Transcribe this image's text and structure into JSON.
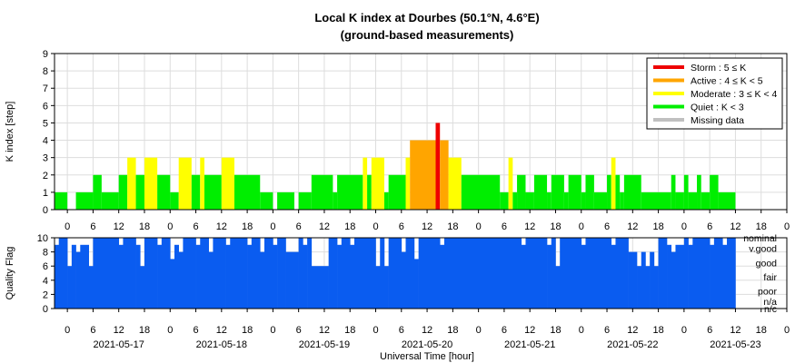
{
  "chart_data": [
    {
      "type": "bar",
      "title": "Local K index at Dourbes (50.1°N, 4.6°E)",
      "subtitle": "(ground-based measurements)",
      "ylabel": "K index [step]",
      "ylim": [
        0,
        9
      ],
      "yticks": [
        "0",
        "1",
        "2",
        "3",
        "4",
        "5",
        "6",
        "7",
        "8",
        "9"
      ],
      "x_start": "2021-05-16 21:00 UT",
      "x_end": "2021-05-24 00:00 UT",
      "bar_width_hours": 1,
      "x_tick_labels": [
        "0",
        "6",
        "12",
        "18",
        "0",
        "6",
        "12",
        "18",
        "0",
        "6",
        "12",
        "18",
        "0",
        "6",
        "12",
        "18",
        "0",
        "6",
        "12",
        "18",
        "0",
        "6",
        "12",
        "18",
        "0",
        "6",
        "12",
        "18",
        "0"
      ],
      "grid": true,
      "legend_placement": "top-right",
      "legend": [
        {
          "label": "Storm : 5 ≤ K",
          "color": "#ee0000"
        },
        {
          "label": "Active : 4 ≤ K < 5",
          "color": "#ffa500"
        },
        {
          "label": "Moderate : 3 ≤ K < 4",
          "color": "#ffff00"
        },
        {
          "label": "Quiet : K < 3",
          "color": "#00ee00"
        },
        {
          "label": "Missing data",
          "color": "#c0c0c0"
        }
      ],
      "bars": [
        {
          "start": "2021-05-16 21:00",
          "end": "2021-05-17 00:00",
          "value": 1
        },
        {
          "start": "2021-05-17 02:00",
          "end": "2021-05-17 06:00",
          "value": 1
        },
        {
          "start": "2021-05-17 06:00",
          "end": "2021-05-17 08:00",
          "value": 2
        },
        {
          "start": "2021-05-17 08:00",
          "end": "2021-05-17 12:00",
          "value": 1
        },
        {
          "start": "2021-05-17 12:00",
          "end": "2021-05-17 14:00",
          "value": 2
        },
        {
          "start": "2021-05-17 14:00",
          "end": "2021-05-17 16:00",
          "value": 3
        },
        {
          "start": "2021-05-17 16:00",
          "end": "2021-05-17 18:00",
          "value": 2
        },
        {
          "start": "2021-05-17 18:00",
          "end": "2021-05-17 21:00",
          "value": 3
        },
        {
          "start": "2021-05-17 21:00",
          "end": "2021-05-18 00:00",
          "value": 2
        },
        {
          "start": "2021-05-18 00:00",
          "end": "2021-05-18 02:00",
          "value": 1
        },
        {
          "start": "2021-05-18 02:00",
          "end": "2021-05-18 05:00",
          "value": 3
        },
        {
          "start": "2021-05-18 05:00",
          "end": "2021-05-18 07:00",
          "value": 2
        },
        {
          "start": "2021-05-18 07:00",
          "end": "2021-05-18 08:00",
          "value": 3
        },
        {
          "start": "2021-05-18 08:00",
          "end": "2021-05-18 12:00",
          "value": 2
        },
        {
          "start": "2021-05-18 12:00",
          "end": "2021-05-18 15:00",
          "value": 3
        },
        {
          "start": "2021-05-18 15:00",
          "end": "2021-05-18 21:00",
          "value": 2
        },
        {
          "start": "2021-05-18 21:00",
          "end": "2021-05-19 00:00",
          "value": 1
        },
        {
          "start": "2021-05-19 01:00",
          "end": "2021-05-19 05:00",
          "value": 1
        },
        {
          "start": "2021-05-19 06:00",
          "end": "2021-05-19 09:00",
          "value": 1
        },
        {
          "start": "2021-05-19 09:00",
          "end": "2021-05-19 14:00",
          "value": 2
        },
        {
          "start": "2021-05-19 14:00",
          "end": "2021-05-19 15:00",
          "value": 1
        },
        {
          "start": "2021-05-19 15:00",
          "end": "2021-05-19 21:00",
          "value": 2
        },
        {
          "start": "2021-05-19 21:00",
          "end": "2021-05-19 22:00",
          "value": 3
        },
        {
          "start": "2021-05-19 22:00",
          "end": "2021-05-19 23:00",
          "value": 2
        },
        {
          "start": "2021-05-19 23:00",
          "end": "2021-05-20 02:00",
          "value": 3
        },
        {
          "start": "2021-05-20 02:00",
          "end": "2021-05-20 03:00",
          "value": 1
        },
        {
          "start": "2021-05-20 03:00",
          "end": "2021-05-20 07:00",
          "value": 2
        },
        {
          "start": "2021-05-20 07:00",
          "end": "2021-05-20 08:00",
          "value": 3
        },
        {
          "start": "2021-05-20 08:00",
          "end": "2021-05-20 14:00",
          "value": 4
        },
        {
          "start": "2021-05-20 14:00",
          "end": "2021-05-20 15:00",
          "value": 5
        },
        {
          "start": "2021-05-20 15:00",
          "end": "2021-05-20 17:00",
          "value": 4
        },
        {
          "start": "2021-05-20 17:00",
          "end": "2021-05-20 20:00",
          "value": 3
        },
        {
          "start": "2021-05-20 20:00",
          "end": "2021-05-21 05:00",
          "value": 2
        },
        {
          "start": "2021-05-21 05:00",
          "end": "2021-05-21 07:00",
          "value": 1
        },
        {
          "start": "2021-05-21 07:00",
          "end": "2021-05-21 08:00",
          "value": 3
        },
        {
          "start": "2021-05-21 08:00",
          "end": "2021-05-21 09:00",
          "value": 1
        },
        {
          "start": "2021-05-21 09:00",
          "end": "2021-05-21 11:00",
          "value": 2
        },
        {
          "start": "2021-05-21 11:00",
          "end": "2021-05-21 13:00",
          "value": 1
        },
        {
          "start": "2021-05-21 13:00",
          "end": "2021-05-21 16:00",
          "value": 2
        },
        {
          "start": "2021-05-21 16:00",
          "end": "2021-05-21 17:00",
          "value": 1
        },
        {
          "start": "2021-05-21 17:00",
          "end": "2021-05-21 20:00",
          "value": 2
        },
        {
          "start": "2021-05-21 20:00",
          "end": "2021-05-21 21:00",
          "value": 1
        },
        {
          "start": "2021-05-21 21:00",
          "end": "2021-05-22 00:00",
          "value": 2
        },
        {
          "start": "2021-05-22 00:00",
          "end": "2021-05-22 01:00",
          "value": 1
        },
        {
          "start": "2021-05-22 01:00",
          "end": "2021-05-22 03:00",
          "value": 2
        },
        {
          "start": "2021-05-22 03:00",
          "end": "2021-05-22 06:00",
          "value": 1
        },
        {
          "start": "2021-05-22 06:00",
          "end": "2021-05-22 07:00",
          "value": 2
        },
        {
          "start": "2021-05-22 07:00",
          "end": "2021-05-22 08:00",
          "value": 3
        },
        {
          "start": "2021-05-22 08:00",
          "end": "2021-05-22 09:00",
          "value": 2
        },
        {
          "start": "2021-05-22 09:00",
          "end": "2021-05-22 10:00",
          "value": 1
        },
        {
          "start": "2021-05-22 10:00",
          "end": "2021-05-22 14:00",
          "value": 2
        },
        {
          "start": "2021-05-22 14:00",
          "end": "2021-05-22 21:00",
          "value": 1
        },
        {
          "start": "2021-05-22 21:00",
          "end": "2021-05-22 22:00",
          "value": 2
        },
        {
          "start": "2021-05-22 22:00",
          "end": "2021-05-23 00:00",
          "value": 1
        },
        {
          "start": "2021-05-23 00:00",
          "end": "2021-05-23 01:00",
          "value": 2
        },
        {
          "start": "2021-05-23 01:00",
          "end": "2021-05-23 03:00",
          "value": 1
        },
        {
          "start": "2021-05-23 03:00",
          "end": "2021-05-23 04:00",
          "value": 2
        },
        {
          "start": "2021-05-23 04:00",
          "end": "2021-05-23 06:00",
          "value": 1
        },
        {
          "start": "2021-05-23 06:00",
          "end": "2021-05-23 08:00",
          "value": 2
        },
        {
          "start": "2021-05-23 08:00",
          "end": "2021-05-23 12:00",
          "value": 1
        }
      ]
    },
    {
      "type": "area",
      "ylabel": "Quality Flag",
      "xlabel": "Universal Time [hour]",
      "ylim": [
        0,
        10
      ],
      "yticks": [
        "0",
        "2",
        "4",
        "6",
        "8",
        "10"
      ],
      "x_tick_labels": [
        "0",
        "6",
        "12",
        "18",
        "0",
        "6",
        "12",
        "18",
        "0",
        "6",
        "12",
        "18",
        "0",
        "6",
        "12",
        "18",
        "0",
        "6",
        "12",
        "18",
        "0",
        "6",
        "12",
        "18",
        "0",
        "6",
        "12",
        "18",
        "0"
      ],
      "date_labels": [
        "2021-05-17",
        "2021-05-18",
        "2021-05-19",
        "2021-05-20",
        "2021-05-21",
        "2021-05-22",
        "2021-05-23"
      ],
      "level_labels": [
        {
          "label": "nominal",
          "value": 10
        },
        {
          "label": "v.good",
          "value": 8.5
        },
        {
          "label": "good",
          "value": 6.5
        },
        {
          "label": "fair",
          "value": 4.5
        },
        {
          "label": "poor",
          "value": 2.5
        },
        {
          "label": "n/a",
          "value": 1
        },
        {
          "label": "n/c",
          "value": 0
        }
      ],
      "color": "#0a5cf0",
      "segments": [
        {
          "start": "2021-05-16 21:00",
          "end": "2021-05-16 22:00",
          "value": 9
        },
        {
          "start": "2021-05-16 22:00",
          "end": "2021-05-17 00:00",
          "value": 10
        },
        {
          "start": "2021-05-17 00:00",
          "end": "2021-05-17 01:00",
          "value": 6
        },
        {
          "start": "2021-05-17 01:00",
          "end": "2021-05-17 02:00",
          "value": 9
        },
        {
          "start": "2021-05-17 02:00",
          "end": "2021-05-17 03:00",
          "value": 8
        },
        {
          "start": "2021-05-17 03:00",
          "end": "2021-05-17 05:00",
          "value": 9
        },
        {
          "start": "2021-05-17 05:00",
          "end": "2021-05-17 06:00",
          "value": 6
        },
        {
          "start": "2021-05-17 06:00",
          "end": "2021-05-17 12:00",
          "value": 10
        },
        {
          "start": "2021-05-17 12:00",
          "end": "2021-05-17 13:00",
          "value": 9
        },
        {
          "start": "2021-05-17 13:00",
          "end": "2021-05-17 16:00",
          "value": 10
        },
        {
          "start": "2021-05-17 16:00",
          "end": "2021-05-17 17:00",
          "value": 9
        },
        {
          "start": "2021-05-17 17:00",
          "end": "2021-05-17 18:00",
          "value": 6
        },
        {
          "start": "2021-05-17 18:00",
          "end": "2021-05-17 21:00",
          "value": 10
        },
        {
          "start": "2021-05-17 21:00",
          "end": "2021-05-17 22:00",
          "value": 9
        },
        {
          "start": "2021-05-17 22:00",
          "end": "2021-05-18 00:00",
          "value": 10
        },
        {
          "start": "2021-05-18 00:00",
          "end": "2021-05-18 01:00",
          "value": 7
        },
        {
          "start": "2021-05-18 01:00",
          "end": "2021-05-18 02:00",
          "value": 9
        },
        {
          "start": "2021-05-18 02:00",
          "end": "2021-05-18 03:00",
          "value": 8
        },
        {
          "start": "2021-05-18 03:00",
          "end": "2021-05-18 06:00",
          "value": 10
        },
        {
          "start": "2021-05-18 06:00",
          "end": "2021-05-18 07:00",
          "value": 9
        },
        {
          "start": "2021-05-18 07:00",
          "end": "2021-05-18 09:00",
          "value": 10
        },
        {
          "start": "2021-05-18 09:00",
          "end": "2021-05-18 10:00",
          "value": 8
        },
        {
          "start": "2021-05-18 10:00",
          "end": "2021-05-18 13:00",
          "value": 10
        },
        {
          "start": "2021-05-18 13:00",
          "end": "2021-05-18 14:00",
          "value": 9
        },
        {
          "start": "2021-05-18 14:00",
          "end": "2021-05-18 18:00",
          "value": 10
        },
        {
          "start": "2021-05-18 18:00",
          "end": "2021-05-18 19:00",
          "value": 9
        },
        {
          "start": "2021-05-18 19:00",
          "end": "2021-05-18 21:00",
          "value": 10
        },
        {
          "start": "2021-05-18 21:00",
          "end": "2021-05-18 22:00",
          "value": 8
        },
        {
          "start": "2021-05-18 22:00",
          "end": "2021-05-19 00:00",
          "value": 10
        },
        {
          "start": "2021-05-19 00:00",
          "end": "2021-05-19 01:00",
          "value": 9
        },
        {
          "start": "2021-05-19 01:00",
          "end": "2021-05-19 03:00",
          "value": 10
        },
        {
          "start": "2021-05-19 03:00",
          "end": "2021-05-19 06:00",
          "value": 8
        },
        {
          "start": "2021-05-19 06:00",
          "end": "2021-05-19 07:00",
          "value": 10
        },
        {
          "start": "2021-05-19 07:00",
          "end": "2021-05-19 08:00",
          "value": 9
        },
        {
          "start": "2021-05-19 08:00",
          "end": "2021-05-19 09:00",
          "value": 10
        },
        {
          "start": "2021-05-19 09:00",
          "end": "2021-05-19 13:00",
          "value": 6
        },
        {
          "start": "2021-05-19 13:00",
          "end": "2021-05-19 15:00",
          "value": 10
        },
        {
          "start": "2021-05-19 15:00",
          "end": "2021-05-19 16:00",
          "value": 9
        },
        {
          "start": "2021-05-19 16:00",
          "end": "2021-05-19 18:00",
          "value": 10
        },
        {
          "start": "2021-05-19 18:00",
          "end": "2021-05-19 19:00",
          "value": 9
        },
        {
          "start": "2021-05-19 19:00",
          "end": "2021-05-20 00:00",
          "value": 10
        },
        {
          "start": "2021-05-20 00:00",
          "end": "2021-05-20 01:00",
          "value": 6
        },
        {
          "start": "2021-05-20 01:00",
          "end": "2021-05-20 02:00",
          "value": 10
        },
        {
          "start": "2021-05-20 02:00",
          "end": "2021-05-20 03:00",
          "value": 6
        },
        {
          "start": "2021-05-20 03:00",
          "end": "2021-05-20 06:00",
          "value": 10
        },
        {
          "start": "2021-05-20 06:00",
          "end": "2021-05-20 07:00",
          "value": 8
        },
        {
          "start": "2021-05-20 07:00",
          "end": "2021-05-20 09:00",
          "value": 10
        },
        {
          "start": "2021-05-20 09:00",
          "end": "2021-05-20 10:00",
          "value": 7
        },
        {
          "start": "2021-05-20 10:00",
          "end": "2021-05-20 15:00",
          "value": 10
        },
        {
          "start": "2021-05-20 15:00",
          "end": "2021-05-20 16:00",
          "value": 9
        },
        {
          "start": "2021-05-20 16:00",
          "end": "2021-05-21 10:00",
          "value": 10
        },
        {
          "start": "2021-05-21 10:00",
          "end": "2021-05-21 11:00",
          "value": 9
        },
        {
          "start": "2021-05-21 11:00",
          "end": "2021-05-21 16:00",
          "value": 10
        },
        {
          "start": "2021-05-21 16:00",
          "end": "2021-05-21 17:00",
          "value": 9
        },
        {
          "start": "2021-05-21 17:00",
          "end": "2021-05-21 18:00",
          "value": 10
        },
        {
          "start": "2021-05-21 18:00",
          "end": "2021-05-21 19:00",
          "value": 6
        },
        {
          "start": "2021-05-21 19:00",
          "end": "2021-05-22 00:00",
          "value": 10
        },
        {
          "start": "2021-05-22 00:00",
          "end": "2021-05-22 01:00",
          "value": 9
        },
        {
          "start": "2021-05-22 01:00",
          "end": "2021-05-22 07:00",
          "value": 10
        },
        {
          "start": "2021-05-22 07:00",
          "end": "2021-05-22 08:00",
          "value": 9
        },
        {
          "start": "2021-05-22 08:00",
          "end": "2021-05-22 11:00",
          "value": 10
        },
        {
          "start": "2021-05-22 11:00",
          "end": "2021-05-22 13:00",
          "value": 8
        },
        {
          "start": "2021-05-22 13:00",
          "end": "2021-05-22 14:00",
          "value": 6
        },
        {
          "start": "2021-05-22 14:00",
          "end": "2021-05-22 15:00",
          "value": 8
        },
        {
          "start": "2021-05-22 15:00",
          "end": "2021-05-22 16:00",
          "value": 6
        },
        {
          "start": "2021-05-22 16:00",
          "end": "2021-05-22 17:00",
          "value": 8
        },
        {
          "start": "2021-05-22 17:00",
          "end": "2021-05-22 18:00",
          "value": 6
        },
        {
          "start": "2021-05-22 18:00",
          "end": "2021-05-22 20:00",
          "value": 10
        },
        {
          "start": "2021-05-22 20:00",
          "end": "2021-05-22 21:00",
          "value": 9
        },
        {
          "start": "2021-05-22 21:00",
          "end": "2021-05-22 22:00",
          "value": 8
        },
        {
          "start": "2021-05-22 22:00",
          "end": "2021-05-23 00:00",
          "value": 9
        },
        {
          "start": "2021-05-23 00:00",
          "end": "2021-05-23 01:00",
          "value": 10
        },
        {
          "start": "2021-05-23 01:00",
          "end": "2021-05-23 02:00",
          "value": 9
        },
        {
          "start": "2021-05-23 02:00",
          "end": "2021-05-23 06:00",
          "value": 10
        },
        {
          "start": "2021-05-23 06:00",
          "end": "2021-05-23 07:00",
          "value": 9
        },
        {
          "start": "2021-05-23 07:00",
          "end": "2021-05-23 09:00",
          "value": 10
        },
        {
          "start": "2021-05-23 09:00",
          "end": "2021-05-23 10:00",
          "value": 9
        },
        {
          "start": "2021-05-23 10:00",
          "end": "2021-05-23 12:00",
          "value": 10
        }
      ]
    }
  ]
}
